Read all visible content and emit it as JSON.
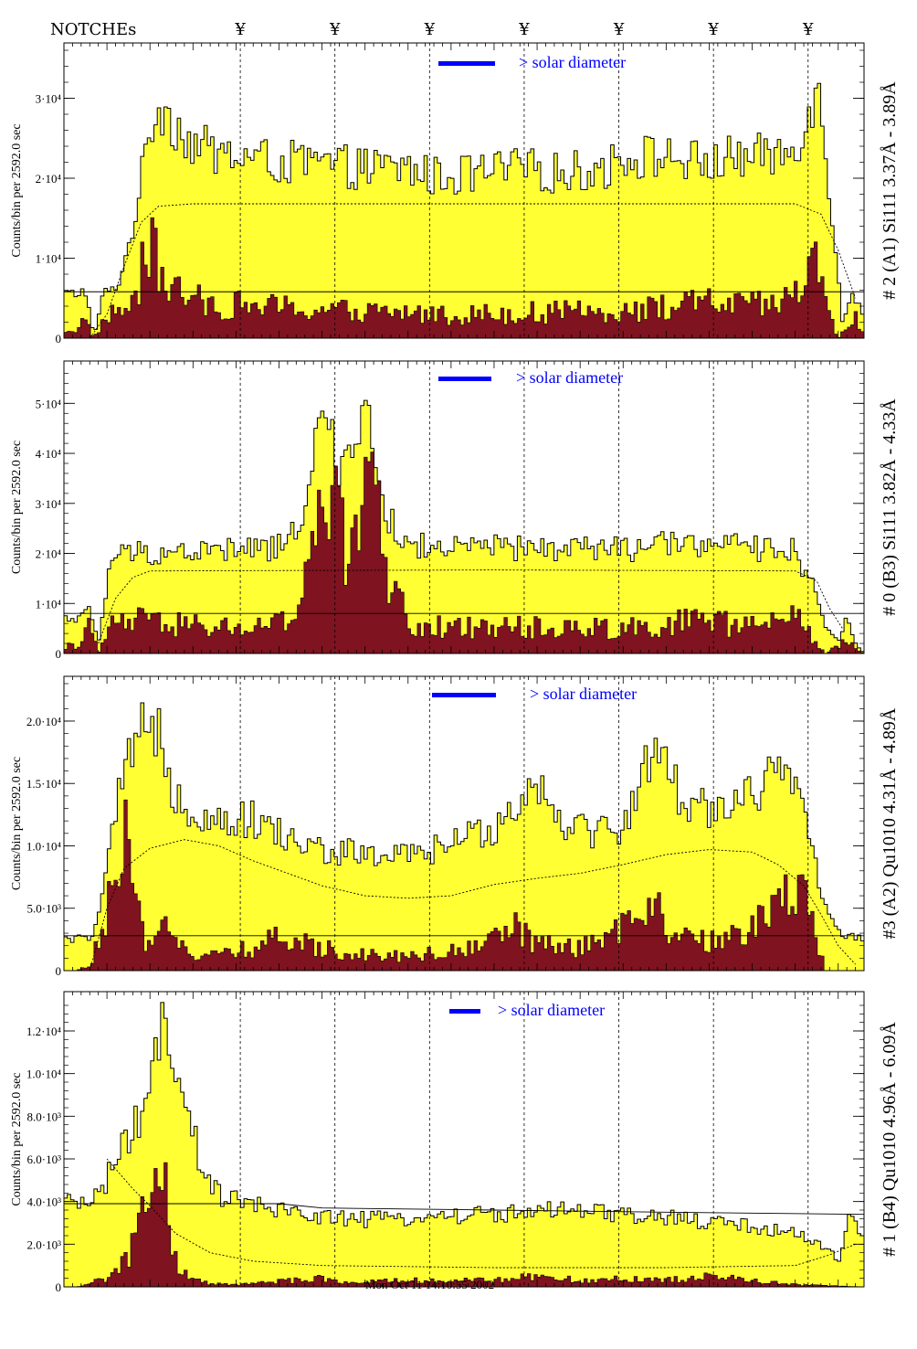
{
  "header": {
    "notches_label": "NOTCHEs",
    "notch_symbol": "¥",
    "notch_x": [
      2.05,
      3.15,
      4.25,
      5.35,
      6.45,
      7.55,
      8.65
    ]
  },
  "legend_text": "> solar diameter",
  "ylabel": "Counts/bin per   2592.0 sec",
  "colors": {
    "fill_total": "#ffff33",
    "fill_sub": "#7f1320",
    "legend_bar": "#0000ff",
    "frame": "#000000"
  },
  "chart_data": [
    {
      "type": "area",
      "side_label": "# 2 (A1) Si111  3.37Å - 3.89Å",
      "ylim": [
        0,
        36000
      ],
      "xlim": [
        0,
        9.0
      ],
      "ytick_values": [
        0,
        10000,
        20000,
        30000
      ],
      "ytick_labels": [
        "0",
        "1·10⁴",
        "2·10⁴",
        "3·10⁴"
      ],
      "total_profile": [
        [
          0.15,
          5500
        ],
        [
          0.25,
          6000
        ],
        [
          0.35,
          0
        ],
        [
          0.45,
          5500
        ],
        [
          0.6,
          6000
        ],
        [
          0.75,
          11000
        ],
        [
          0.85,
          17000
        ],
        [
          0.95,
          22000
        ],
        [
          1.0,
          26000
        ],
        [
          1.1,
          29000
        ],
        [
          1.2,
          28000
        ],
        [
          1.4,
          25000
        ],
        [
          1.7,
          23000
        ],
        [
          2.0,
          22500
        ],
        [
          2.5,
          21800
        ],
        [
          3.0,
          21500
        ],
        [
          3.5,
          21000
        ],
        [
          4.0,
          21000
        ],
        [
          4.3,
          20000
        ],
        [
          4.8,
          20300
        ],
        [
          5.3,
          21000
        ],
        [
          5.8,
          20500
        ],
        [
          6.3,
          21000
        ],
        [
          6.5,
          22500
        ],
        [
          7.0,
          22500
        ],
        [
          7.5,
          21500
        ],
        [
          7.8,
          22500
        ],
        [
          8.2,
          22500
        ],
        [
          8.5,
          23500
        ],
        [
          8.6,
          27000
        ],
        [
          8.75,
          31000
        ],
        [
          8.85,
          24000
        ],
        [
          9.0,
          8000
        ],
        [
          9.05,
          2000
        ],
        [
          9.15,
          5500
        ],
        [
          9.3,
          3000
        ]
      ],
      "sub_profile": [
        [
          0.15,
          1000
        ],
        [
          0.25,
          2500
        ],
        [
          0.35,
          0
        ],
        [
          0.45,
          2000
        ],
        [
          0.55,
          3000
        ],
        [
          0.8,
          4000
        ],
        [
          0.9,
          8000
        ],
        [
          1.0,
          11000
        ],
        [
          1.1,
          9000
        ],
        [
          1.2,
          7000
        ],
        [
          1.4,
          5000
        ],
        [
          1.8,
          4200
        ],
        [
          2.3,
          4000
        ],
        [
          2.8,
          3600
        ],
        [
          3.5,
          3300
        ],
        [
          4.0,
          3200
        ],
        [
          4.5,
          2900
        ],
        [
          5.0,
          3100
        ],
        [
          5.5,
          3200
        ],
        [
          6.0,
          3300
        ],
        [
          6.5,
          3500
        ],
        [
          7.0,
          3800
        ],
        [
          7.5,
          4500
        ],
        [
          8.0,
          4000
        ],
        [
          8.3,
          4200
        ],
        [
          8.5,
          5500
        ],
        [
          8.7,
          9000
        ],
        [
          8.8,
          8500
        ],
        [
          8.9,
          2500
        ],
        [
          9.0,
          0
        ],
        [
          9.1,
          1500
        ],
        [
          9.2,
          3000
        ],
        [
          9.3,
          0
        ]
      ],
      "model_profile": [
        [
          0.3,
          0
        ],
        [
          0.5,
          3000
        ],
        [
          0.7,
          9000
        ],
        [
          0.9,
          14500
        ],
        [
          1.1,
          16500
        ],
        [
          1.5,
          16800
        ],
        [
          5.0,
          16800
        ],
        [
          8.5,
          16800
        ],
        [
          8.8,
          15500
        ],
        [
          9.0,
          11000
        ],
        [
          9.2,
          5000
        ]
      ],
      "step_profile": [
        [
          0.0,
          5800
        ],
        [
          9.3,
          5800
        ]
      ]
    },
    {
      "type": "area",
      "side_label": "# 0 (B3) Si111  3.82Å - 4.33Å",
      "ylim": [
        0,
        57000
      ],
      "xlim": [
        0,
        9.0
      ],
      "ytick_values": [
        0,
        10000,
        20000,
        30000,
        40000,
        50000
      ],
      "ytick_labels": [
        "0",
        "1·10⁴",
        "2·10⁴",
        "3·10⁴",
        "4·10⁴",
        "5·10⁴"
      ],
      "total_profile": [
        [
          0.15,
          7000
        ],
        [
          0.3,
          8500
        ],
        [
          0.4,
          2000
        ],
        [
          0.55,
          19000
        ],
        [
          0.8,
          20000
        ],
        [
          1.3,
          20000
        ],
        [
          2.0,
          20500
        ],
        [
          2.6,
          21000
        ],
        [
          2.8,
          30000
        ],
        [
          2.9,
          41000
        ],
        [
          3.05,
          48000
        ],
        [
          3.2,
          33000
        ],
        [
          3.35,
          44000
        ],
        [
          3.5,
          49000
        ],
        [
          3.6,
          38000
        ],
        [
          3.75,
          28000
        ],
        [
          3.9,
          22000
        ],
        [
          4.5,
          20500
        ],
        [
          5.0,
          21000
        ],
        [
          5.5,
          20500
        ],
        [
          6.0,
          21000
        ],
        [
          6.5,
          20500
        ],
        [
          7.0,
          21500
        ],
        [
          7.5,
          22000
        ],
        [
          8.0,
          20500
        ],
        [
          8.3,
          21500
        ],
        [
          8.5,
          20000
        ],
        [
          8.7,
          14000
        ],
        [
          8.85,
          6000
        ],
        [
          9.0,
          2000
        ],
        [
          9.1,
          7500
        ],
        [
          9.2,
          2000
        ],
        [
          9.3,
          0
        ]
      ],
      "sub_profile": [
        [
          0.15,
          1500
        ],
        [
          0.3,
          5500
        ],
        [
          0.4,
          0
        ],
        [
          0.55,
          6000
        ],
        [
          0.8,
          6500
        ],
        [
          1.5,
          5500
        ],
        [
          2.0,
          5000
        ],
        [
          2.5,
          5800
        ],
        [
          2.7,
          7000
        ],
        [
          2.85,
          20000
        ],
        [
          3.0,
          34000
        ],
        [
          3.15,
          27000
        ],
        [
          3.3,
          18000
        ],
        [
          3.4,
          28000
        ],
        [
          3.55,
          34000
        ],
        [
          3.7,
          22000
        ],
        [
          3.85,
          12000
        ],
        [
          4.0,
          6000
        ],
        [
          4.5,
          5000
        ],
        [
          5.0,
          5500
        ],
        [
          5.5,
          5200
        ],
        [
          6.0,
          5000
        ],
        [
          6.5,
          5200
        ],
        [
          7.0,
          6000
        ],
        [
          7.5,
          6500
        ],
        [
          7.9,
          5500
        ],
        [
          8.3,
          6500
        ],
        [
          8.5,
          7000
        ],
        [
          8.7,
          3000
        ],
        [
          8.85,
          0
        ],
        [
          9.1,
          2500
        ],
        [
          9.3,
          0
        ]
      ],
      "model_profile": [
        [
          0.4,
          2000
        ],
        [
          0.6,
          11000
        ],
        [
          0.8,
          15200
        ],
        [
          1.0,
          16500
        ],
        [
          5.0,
          16700
        ],
        [
          8.5,
          16500
        ],
        [
          8.75,
          14500
        ],
        [
          8.9,
          9000
        ],
        [
          9.05,
          5000
        ]
      ],
      "step_profile": [
        [
          0.0,
          8000
        ],
        [
          9.3,
          8000
        ]
      ]
    },
    {
      "type": "area",
      "side_label": "#3 (A2) Qu1010  4.31Å - 4.89Å",
      "ylim": [
        0,
        23000
      ],
      "xlim": [
        0,
        9.0
      ],
      "ytick_values": [
        0,
        5000,
        10000,
        15000,
        20000
      ],
      "ytick_labels": [
        "0",
        "5.0·10³",
        "1.0·10⁴",
        "1.5·10⁴",
        "2.0·10⁴"
      ],
      "total_profile": [
        [
          0.15,
          2500
        ],
        [
          0.35,
          2800
        ],
        [
          0.5,
          8000
        ],
        [
          0.65,
          14000
        ],
        [
          0.8,
          17500
        ],
        [
          0.9,
          19000
        ],
        [
          1.0,
          17500
        ],
        [
          1.1,
          20000
        ],
        [
          1.25,
          15000
        ],
        [
          1.4,
          13000
        ],
        [
          1.8,
          12000
        ],
        [
          2.2,
          12000
        ],
        [
          2.6,
          10500
        ],
        [
          3.0,
          9500
        ],
        [
          3.5,
          9200
        ],
        [
          4.0,
          9000
        ],
        [
          4.5,
          10000
        ],
        [
          5.0,
          11500
        ],
        [
          5.3,
          13500
        ],
        [
          5.5,
          15000
        ],
        [
          5.8,
          12000
        ],
        [
          6.2,
          11000
        ],
        [
          6.5,
          11500
        ],
        [
          6.7,
          14500
        ],
        [
          6.85,
          18500
        ],
        [
          7.0,
          16000
        ],
        [
          7.2,
          13500
        ],
        [
          7.5,
          13000
        ],
        [
          7.8,
          13500
        ],
        [
          8.1,
          14500
        ],
        [
          8.3,
          16000
        ],
        [
          8.5,
          14000
        ],
        [
          8.7,
          10000
        ],
        [
          8.85,
          5000
        ],
        [
          9.0,
          3000
        ],
        [
          9.3,
          2500
        ]
      ],
      "sub_profile": [
        [
          0.15,
          0
        ],
        [
          0.3,
          500
        ],
        [
          0.45,
          3000
        ],
        [
          0.6,
          7000
        ],
        [
          0.7,
          10000
        ],
        [
          0.8,
          7000
        ],
        [
          0.9,
          3000
        ],
        [
          1.0,
          1500
        ],
        [
          1.2,
          4000
        ],
        [
          1.35,
          3000
        ],
        [
          1.5,
          1000
        ],
        [
          2.0,
          1500
        ],
        [
          2.5,
          2500
        ],
        [
          3.0,
          1800
        ],
        [
          3.5,
          1300
        ],
        [
          4.0,
          1200
        ],
        [
          4.5,
          1500
        ],
        [
          5.0,
          2500
        ],
        [
          5.3,
          3500
        ],
        [
          5.5,
          2000
        ],
        [
          6.0,
          1800
        ],
        [
          6.4,
          2800
        ],
        [
          6.7,
          4500
        ],
        [
          6.85,
          6500
        ],
        [
          7.0,
          2500
        ],
        [
          7.5,
          2200
        ],
        [
          8.0,
          3800
        ],
        [
          8.3,
          5000
        ],
        [
          8.5,
          5800
        ],
        [
          8.65,
          6500
        ],
        [
          8.75,
          3000
        ],
        [
          8.85,
          0
        ],
        [
          9.3,
          0
        ]
      ],
      "model_profile": [
        [
          0.3,
          0
        ],
        [
          0.5,
          5000
        ],
        [
          0.7,
          8200
        ],
        [
          1.0,
          9800
        ],
        [
          1.4,
          10500
        ],
        [
          1.8,
          10000
        ],
        [
          2.2,
          8800
        ],
        [
          2.6,
          7800
        ],
        [
          3.0,
          6800
        ],
        [
          3.5,
          6000
        ],
        [
          4.0,
          5800
        ],
        [
          4.5,
          6000
        ],
        [
          5.0,
          6900
        ],
        [
          5.5,
          7400
        ],
        [
          6.0,
          7800
        ],
        [
          6.5,
          8500
        ],
        [
          7.0,
          9300
        ],
        [
          7.5,
          9700
        ],
        [
          8.0,
          9500
        ],
        [
          8.3,
          8500
        ],
        [
          8.6,
          6800
        ],
        [
          8.8,
          4500
        ],
        [
          9.0,
          2000
        ],
        [
          9.2,
          500
        ]
      ],
      "step_profile": [
        [
          0.0,
          2800
        ],
        [
          9.3,
          2800
        ]
      ]
    },
    {
      "type": "area",
      "side_label": "# 1 (B4) Qu1010 4.96Å - 6.09Å",
      "ylim": [
        0,
        13500
      ],
      "xlim": [
        0,
        9.0
      ],
      "ytick_values": [
        0,
        2000,
        4000,
        6000,
        8000,
        10000,
        12000
      ],
      "ytick_labels": [
        "0",
        "2.0·10³",
        "4.0·10³",
        "6.0·10³",
        "8.0·10³",
        "1.0·10⁴",
        "1.2·10⁴"
      ],
      "total_profile": [
        [
          0.15,
          3800
        ],
        [
          0.35,
          4200
        ],
        [
          0.5,
          5000
        ],
        [
          0.7,
          6500
        ],
        [
          0.9,
          8000
        ],
        [
          1.05,
          10000
        ],
        [
          1.15,
          12000
        ],
        [
          1.3,
          9500
        ],
        [
          1.5,
          7000
        ],
        [
          1.7,
          4500
        ],
        [
          2.0,
          4000
        ],
        [
          2.5,
          3500
        ],
        [
          3.0,
          3300
        ],
        [
          3.5,
          3100
        ],
        [
          4.0,
          3200
        ],
        [
          4.5,
          3300
        ],
        [
          5.0,
          3400
        ],
        [
          5.5,
          3500
        ],
        [
          6.0,
          3500
        ],
        [
          6.5,
          3300
        ],
        [
          7.0,
          3200
        ],
        [
          7.5,
          3000
        ],
        [
          8.0,
          2800
        ],
        [
          8.5,
          2500
        ],
        [
          8.8,
          2000
        ],
        [
          9.0,
          1200
        ],
        [
          9.15,
          3500
        ],
        [
          9.3,
          2000
        ]
      ],
      "sub_profile": [
        [
          0.15,
          0
        ],
        [
          0.5,
          400
        ],
        [
          0.7,
          1200
        ],
        [
          0.85,
          2500
        ],
        [
          0.95,
          3500
        ],
        [
          1.05,
          5000
        ],
        [
          1.15,
          5300
        ],
        [
          1.25,
          2500
        ],
        [
          1.35,
          700
        ],
        [
          1.6,
          200
        ],
        [
          2.0,
          100
        ],
        [
          3.0,
          400
        ],
        [
          3.3,
          200
        ],
        [
          4.0,
          300
        ],
        [
          5.0,
          300
        ],
        [
          5.5,
          500
        ],
        [
          6.0,
          300
        ],
        [
          6.5,
          400
        ],
        [
          7.0,
          300
        ],
        [
          7.5,
          500
        ],
        [
          8.0,
          300
        ],
        [
          8.5,
          100
        ],
        [
          9.3,
          0
        ]
      ],
      "model_profile": [
        [
          0.5,
          6000
        ],
        [
          0.8,
          4600
        ],
        [
          1.0,
          3800
        ],
        [
          1.3,
          2500
        ],
        [
          1.7,
          1600
        ],
        [
          2.2,
          1200
        ],
        [
          3.0,
          1000
        ],
        [
          5.0,
          900
        ],
        [
          7.0,
          900
        ],
        [
          8.5,
          1000
        ],
        [
          8.9,
          1500
        ],
        [
          9.2,
          2000
        ]
      ],
      "step_profile": [
        [
          0.0,
          3900
        ],
        [
          2.5,
          3900
        ],
        [
          3.0,
          3700
        ],
        [
          5.0,
          3600
        ],
        [
          7.0,
          3500
        ],
        [
          9.3,
          3400
        ]
      ]
    }
  ],
  "timestamp": "Mon Oct 11 14:10:55 2002"
}
